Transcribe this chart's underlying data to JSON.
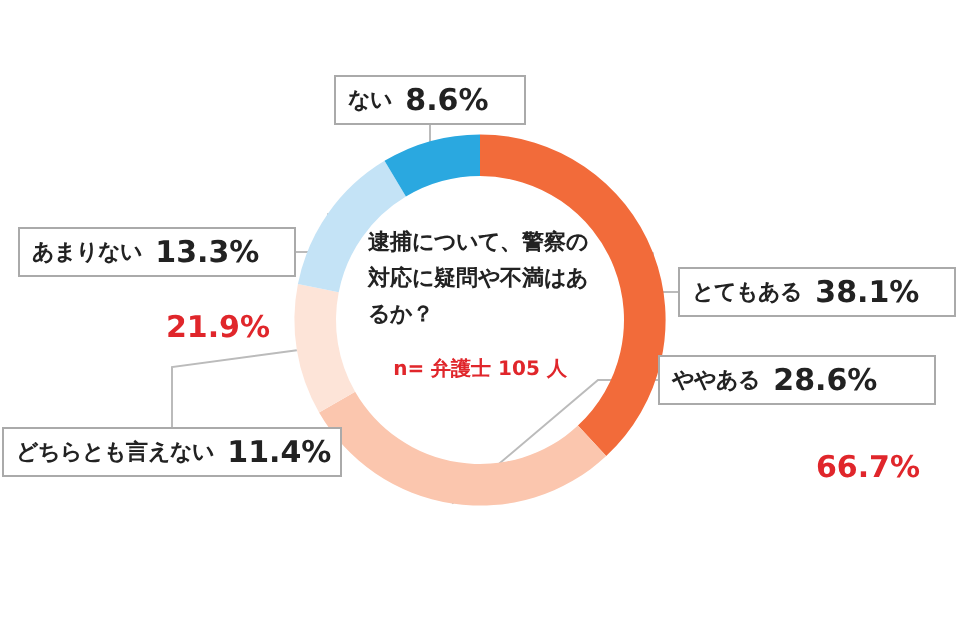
{
  "chart_data": {
    "type": "donut",
    "title": "逮捕について、警察の対応に疑問や不満はあるか？",
    "subtitle": "n= 弁護士 105 人",
    "categories": [
      "とてもある",
      "ややある",
      "どちらとも言えない",
      "あまりない",
      "ない"
    ],
    "values": [
      38.1,
      28.6,
      11.4,
      13.3,
      8.6
    ],
    "value_labels": [
      "38.1%",
      "28.6%",
      "11.4%",
      "13.3%",
      "8.6%"
    ],
    "colors": [
      "#f26b3a",
      "#fbc6ae",
      "#fde4d8",
      "#c4e3f6",
      "#2aa8e0"
    ],
    "annotations": [
      "66.7%",
      "21.9%"
    ],
    "legend": false
  }
}
